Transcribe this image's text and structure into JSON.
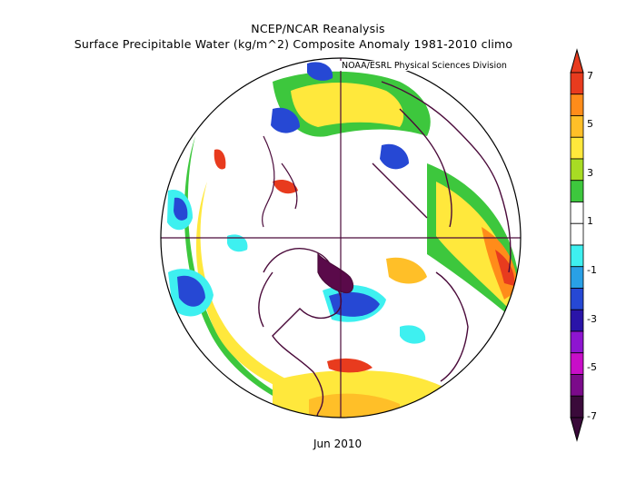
{
  "header": {
    "line1": "NCEP/NCAR Reanalysis",
    "line2": "Surface Precipitable Water (kg/m^2) Composite Anomaly 1981-2010 climo"
  },
  "credit": "NOAA/ESRL Physical Sciences Division",
  "date_label": "Jun 2010",
  "map": {
    "projection": "north polar stereographic",
    "features": [
      "coastlines",
      "country-borders",
      "meridian-cross"
    ]
  },
  "colorbar": {
    "tick_labels": [
      "7",
      "5",
      "3",
      "1",
      "-1",
      "-3",
      "-5",
      "-7"
    ],
    "colors": [
      "#e83b1e",
      "#ff8c1a",
      "#ffbf28",
      "#ffe83c",
      "#a8dc24",
      "#3dc73d",
      "#ffffff",
      "#ffffff",
      "#3ef0f0",
      "#29a0e6",
      "#2648d4",
      "#2a14a8",
      "#8e15d0",
      "#c80ec8",
      "#7b0a8a",
      "#3a0a3a"
    ]
  }
}
